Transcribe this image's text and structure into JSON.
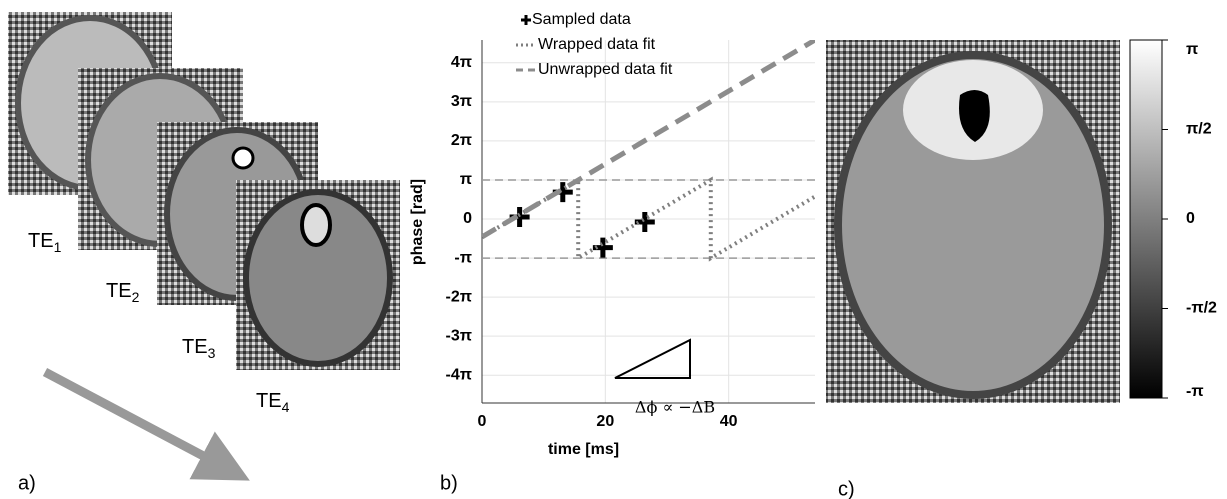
{
  "panel_a": {
    "label": "a)",
    "echo_labels": [
      {
        "base": "TE",
        "sub": "1"
      },
      {
        "base": "TE",
        "sub": "2"
      },
      {
        "base": "TE",
        "sub": "3"
      },
      {
        "base": "TE",
        "sub": "4"
      }
    ]
  },
  "chart_data": {
    "type": "line",
    "label": "b)",
    "xlabel": "time [ms]",
    "ylabel": "phase [rad]",
    "xlim": [
      0,
      54
    ],
    "xticks": [
      0,
      20,
      40
    ],
    "ylim": [
      -14.8,
      14.4
    ],
    "yticks": [
      {
        "value": 12.566,
        "label": "4π"
      },
      {
        "value": 9.425,
        "label": "3π"
      },
      {
        "value": 6.283,
        "label": "2π"
      },
      {
        "value": 3.142,
        "label": "π"
      },
      0,
      {
        "value": -3.142,
        "label": "-π"
      },
      {
        "value": -6.283,
        "label": "-2π"
      },
      {
        "value": -9.425,
        "label": "-3π"
      },
      {
        "value": -12.566,
        "label": "-4π"
      }
    ],
    "grid": true,
    "hlines": [
      3.142,
      -3.142
    ],
    "series": [
      {
        "name": "Sampled data",
        "style": "plus",
        "color": "#000000",
        "x": [
          6.1,
          13.1,
          19.6,
          26.4
        ],
        "values": [
          0.16,
          2.16,
          -2.3,
          -0.24
        ]
      },
      {
        "name": "Wrapped data fit",
        "style": "dotted",
        "color": "#7f7f7f",
        "x": [
          0,
          15.6,
          15.6,
          37.1,
          37.1,
          54
        ],
        "values": [
          -1.44,
          3.142,
          -3.142,
          3.142,
          -3.142,
          1.81
        ]
      },
      {
        "name": "Unwrapped data fit",
        "style": "dashed",
        "color": "#8c8c8c",
        "x": [
          0,
          54
        ],
        "values": [
          -1.44,
          14.4
        ]
      }
    ],
    "annotation": "Δϕ ∝ −ΔB"
  },
  "panel_c": {
    "label": "c)",
    "colorbar": {
      "lim": [
        -3.142,
        3.142
      ],
      "ticks": [
        {
          "value": 3.142,
          "label": "π"
        },
        {
          "value": 1.571,
          "label": "π/2"
        },
        0,
        {
          "value": -1.571,
          "label": "-π/2"
        },
        {
          "value": -3.142,
          "label": "-π"
        }
      ]
    }
  }
}
